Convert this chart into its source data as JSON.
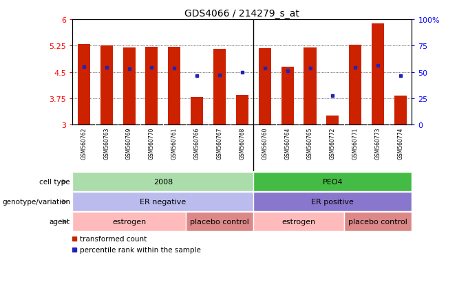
{
  "title": "GDS4066 / 214279_s_at",
  "samples": [
    "GSM560762",
    "GSM560763",
    "GSM560769",
    "GSM560770",
    "GSM560761",
    "GSM560766",
    "GSM560767",
    "GSM560768",
    "GSM560760",
    "GSM560764",
    "GSM560765",
    "GSM560772",
    "GSM560771",
    "GSM560773",
    "GSM560774"
  ],
  "bar_values": [
    5.3,
    5.25,
    5.2,
    5.22,
    5.21,
    3.78,
    5.15,
    3.85,
    5.18,
    4.65,
    5.2,
    3.25,
    5.27,
    5.88,
    3.82
  ],
  "blue_dot_values": [
    4.65,
    4.62,
    4.59,
    4.62,
    4.6,
    4.4,
    4.42,
    4.5,
    4.61,
    4.53,
    4.6,
    3.82,
    4.62,
    4.68,
    4.4
  ],
  "ymin": 3.0,
  "ymax": 6.0,
  "yticks": [
    3.0,
    3.75,
    4.5,
    5.25,
    6.0
  ],
  "ytick_labels": [
    "3",
    "3.75",
    "4.5",
    "5.25",
    "6"
  ],
  "right_yticks": [
    0,
    25,
    50,
    75,
    100
  ],
  "right_ytick_labels": [
    "0",
    "25",
    "50",
    "75",
    "100%"
  ],
  "bar_color": "#CC2200",
  "dot_color": "#2222BB",
  "bar_bottom": 3.0,
  "cell_type_groups": [
    {
      "label": "2008",
      "start": 0,
      "end": 8,
      "color": "#AADDAA"
    },
    {
      "label": "PEO4",
      "start": 8,
      "end": 15,
      "color": "#44BB44"
    }
  ],
  "geno_groups": [
    {
      "label": "ER negative",
      "start": 0,
      "end": 8,
      "color": "#BBBBEE"
    },
    {
      "label": "ER positive",
      "start": 8,
      "end": 15,
      "color": "#8877CC"
    }
  ],
  "agent_groups": [
    {
      "label": "estrogen",
      "start": 0,
      "end": 5,
      "color": "#FFBBBB"
    },
    {
      "label": "placebo control",
      "start": 5,
      "end": 8,
      "color": "#DD8888"
    },
    {
      "label": "estrogen",
      "start": 8,
      "end": 12,
      "color": "#FFBBBB"
    },
    {
      "label": "placebo control",
      "start": 12,
      "end": 15,
      "color": "#DD8888"
    }
  ],
  "row_labels": [
    "cell type",
    "genotype/variation",
    "agent"
  ],
  "legend_items": [
    {
      "label": "transformed count",
      "color": "#CC2200"
    },
    {
      "label": "percentile rank within the sample",
      "color": "#2222BB"
    }
  ],
  "separator": 7.5,
  "bg_color": "#ffffff",
  "xtick_area_color": "#DDDDDD"
}
